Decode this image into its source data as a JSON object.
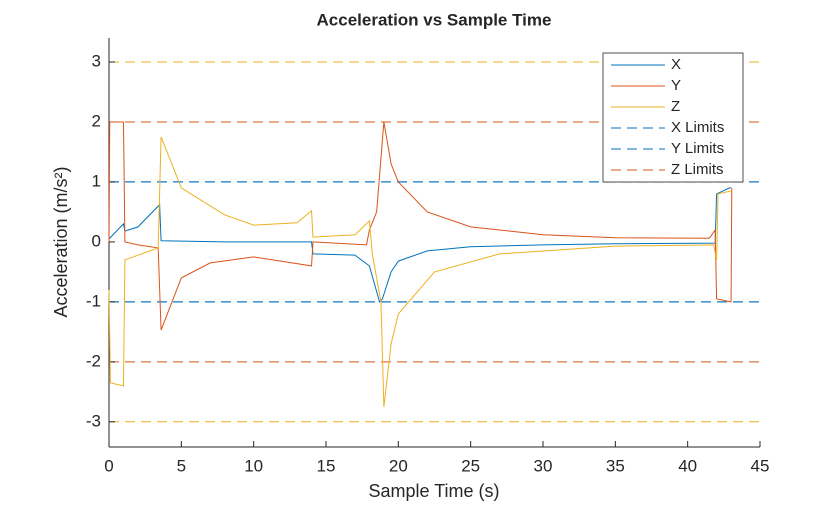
{
  "chart_data": {
    "type": "line",
    "title": "Acceleration vs Sample Time",
    "xlabel": "Sample Time (s)",
    "ylabel": "Acceleration (m/s²)",
    "xlim": [
      0,
      45
    ],
    "ylim": [
      -3.42,
      3.4
    ],
    "xticks": [
      0,
      5,
      10,
      15,
      20,
      25,
      30,
      35,
      40,
      45
    ],
    "yticks": [
      -3,
      -2,
      -1,
      0,
      1,
      2,
      3
    ],
    "series": [
      {
        "name": "X",
        "color": "#0072BD",
        "x": [
          0,
          1,
          1.1,
          2,
          3.5,
          3.6,
          8,
          14,
          14.1,
          17,
          18,
          18.7,
          18.9,
          19.5,
          20,
          22,
          25,
          30,
          35,
          41.9,
          42,
          42.9,
          43
        ],
        "values": [
          0.05,
          0.3,
          0.18,
          0.25,
          0.62,
          0.02,
          0.0,
          0.0,
          -0.2,
          -0.22,
          -0.4,
          -1.0,
          -0.95,
          -0.5,
          -0.32,
          -0.15,
          -0.08,
          -0.05,
          -0.03,
          -0.02,
          0.8,
          0.9,
          0.9
        ]
      },
      {
        "name": "Y",
        "color": "#D95319",
        "x": [
          0,
          0.05,
          1,
          1.1,
          2,
          3.4,
          3.6,
          5,
          7,
          10,
          14,
          14.1,
          17.8,
          18,
          18.5,
          19,
          19.5,
          20,
          22,
          25,
          30,
          35,
          41.5,
          41.9,
          42,
          43,
          43.05
        ],
        "values": [
          0,
          2,
          2,
          0,
          -0.05,
          -0.1,
          -1.47,
          -0.6,
          -0.35,
          -0.25,
          -0.4,
          0,
          -0.05,
          0.2,
          0.5,
          2,
          1.3,
          1.0,
          0.5,
          0.25,
          0.12,
          0.07,
          0.06,
          0.2,
          -0.95,
          -1.0,
          0.9
        ]
      },
      {
        "name": "Z",
        "color": "#EDB120",
        "x": [
          0,
          0.1,
          1,
          1.1,
          3.4,
          3.6,
          5,
          8,
          10,
          13,
          14,
          14.1,
          17,
          18,
          18.2,
          18.8,
          19,
          19.5,
          20,
          22.5,
          27,
          35,
          41.8,
          42,
          42.1,
          43
        ],
        "values": [
          -0.8,
          -2.35,
          -2.4,
          -0.3,
          -0.1,
          1.75,
          0.9,
          0.45,
          0.28,
          0.32,
          0.52,
          0.08,
          0.12,
          0.35,
          -0.2,
          -1.0,
          -2.75,
          -1.7,
          -1.2,
          -0.5,
          -0.2,
          -0.07,
          -0.05,
          -0.3,
          0.8,
          0.85
        ]
      }
    ],
    "limits": [
      {
        "name": "X Limits",
        "color": "#0072BD",
        "values": [
          -1,
          1
        ]
      },
      {
        "name": "Y Limits",
        "color": "#0072BD",
        "values": [
          -1,
          1
        ]
      },
      {
        "name": "Z Limits",
        "color": "#D95319",
        "values": [
          -2,
          2
        ]
      }
    ],
    "extra_limits": {
      "color": "#EDB120",
      "values": [
        -3,
        3
      ]
    },
    "legend": "upper right"
  }
}
